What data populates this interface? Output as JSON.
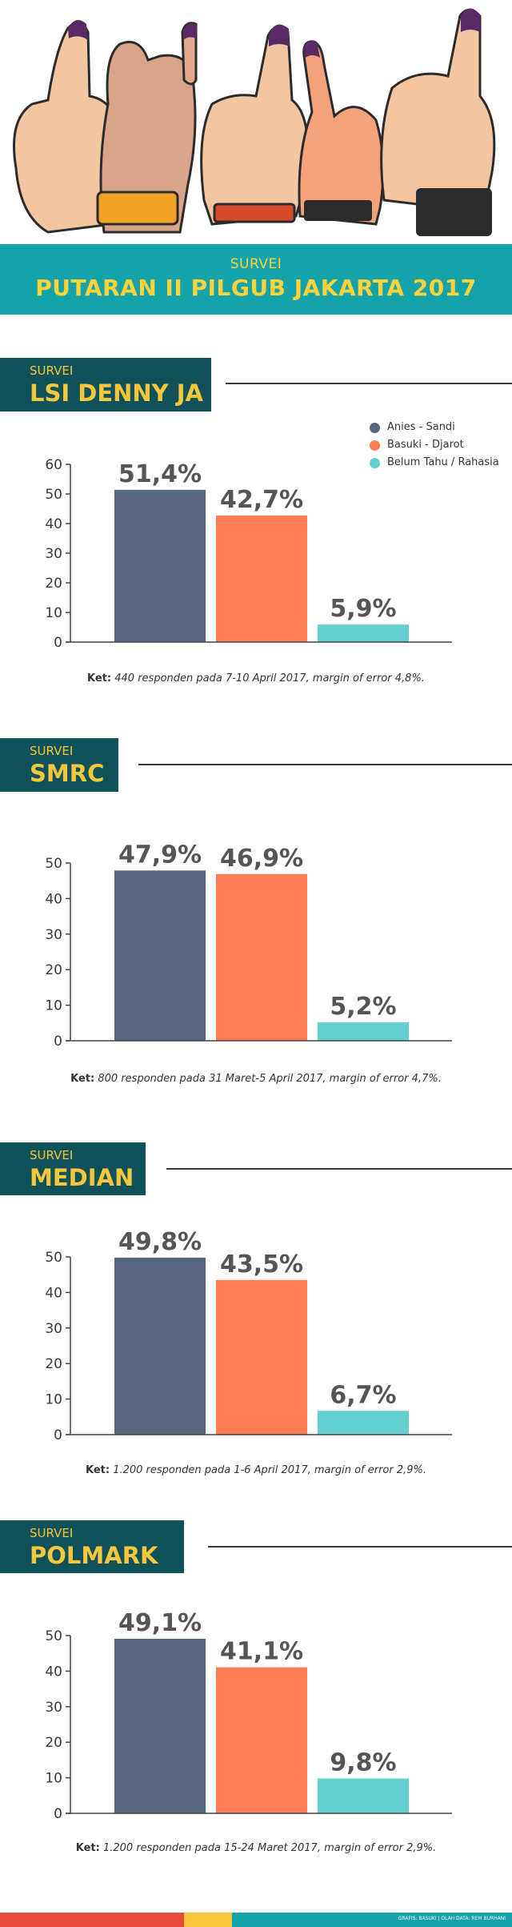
{
  "banner": {
    "kicker": "SURVEI",
    "title": "PUTARAN II PILGUB JAKARTA 2017"
  },
  "legend": [
    {
      "name": "Anies - Sandi",
      "color": "#56667f"
    },
    {
      "name": "Basuki - Djarot",
      "color": "#fe7d54"
    },
    {
      "name": "Belum Tahu / Rahasia",
      "color": "#63cfd0"
    }
  ],
  "chart_data": [
    {
      "type": "bar",
      "kicker": "SURVEI",
      "title": "LSI DENNY JA",
      "categories": [
        "Anies - Sandi",
        "Basuki - Djarot",
        "Belum Tahu / Rahasia"
      ],
      "values": [
        51.4,
        42.7,
        5.9
      ],
      "value_labels": [
        "51,4%",
        "42,7%",
        "5,9%"
      ],
      "yticks": [
        "0",
        "10",
        "20",
        "30",
        "40",
        "50",
        "60"
      ],
      "ylim": [
        0,
        60
      ],
      "note_label": "Ket:",
      "note_text": "440 responden pada 7-10 April 2017, margin of error 4,8%."
    },
    {
      "type": "bar",
      "kicker": "SURVEI",
      "title": "SMRC",
      "categories": [
        "Anies - Sandi",
        "Basuki - Djarot",
        "Belum Tahu / Rahasia"
      ],
      "values": [
        47.9,
        46.9,
        5.2
      ],
      "value_labels": [
        "47,9%",
        "46,9%",
        "5,2%"
      ],
      "yticks": [
        "0",
        "10",
        "20",
        "30",
        "40",
        "50"
      ],
      "ylim": [
        0,
        50
      ],
      "note_label": "Ket:",
      "note_text": "800 responden pada 31 Maret-5 April 2017, margin of error 4,7%."
    },
    {
      "type": "bar",
      "kicker": "SURVEI",
      "title": "MEDIAN",
      "categories": [
        "Anies - Sandi",
        "Basuki - Djarot",
        "Belum Tahu / Rahasia"
      ],
      "values": [
        49.8,
        43.5,
        6.7
      ],
      "value_labels": [
        "49,8%",
        "43,5%",
        "6,7%"
      ],
      "yticks": [
        "0",
        "10",
        "20",
        "30",
        "40",
        "50"
      ],
      "ylim": [
        0,
        50
      ],
      "note_label": "Ket:",
      "note_text": "1.200 responden pada 1-6 April 2017, margin of error 2,9%."
    },
    {
      "type": "bar",
      "kicker": "SURVEI",
      "title": "POLMARK",
      "categories": [
        "Anies - Sandi",
        "Basuki - Djarot",
        "Belum Tahu / Rahasia"
      ],
      "values": [
        49.1,
        41.1,
        9.8
      ],
      "value_labels": [
        "49,1%",
        "41,1%",
        "9,8%"
      ],
      "yticks": [
        "0",
        "10",
        "20",
        "30",
        "40",
        "50"
      ],
      "ylim": [
        0,
        50
      ],
      "note_label": "Ket:",
      "note_text": "1.200 responden pada 15-24 Maret 2017, margin of error 2,9%."
    }
  ],
  "footer": {
    "credit": "GRAFIS: BASUKI | OLAH DATA: REM BURHANI",
    "colors": [
      "#e84c3d",
      "#f6c63c",
      "#13a3a8"
    ]
  }
}
